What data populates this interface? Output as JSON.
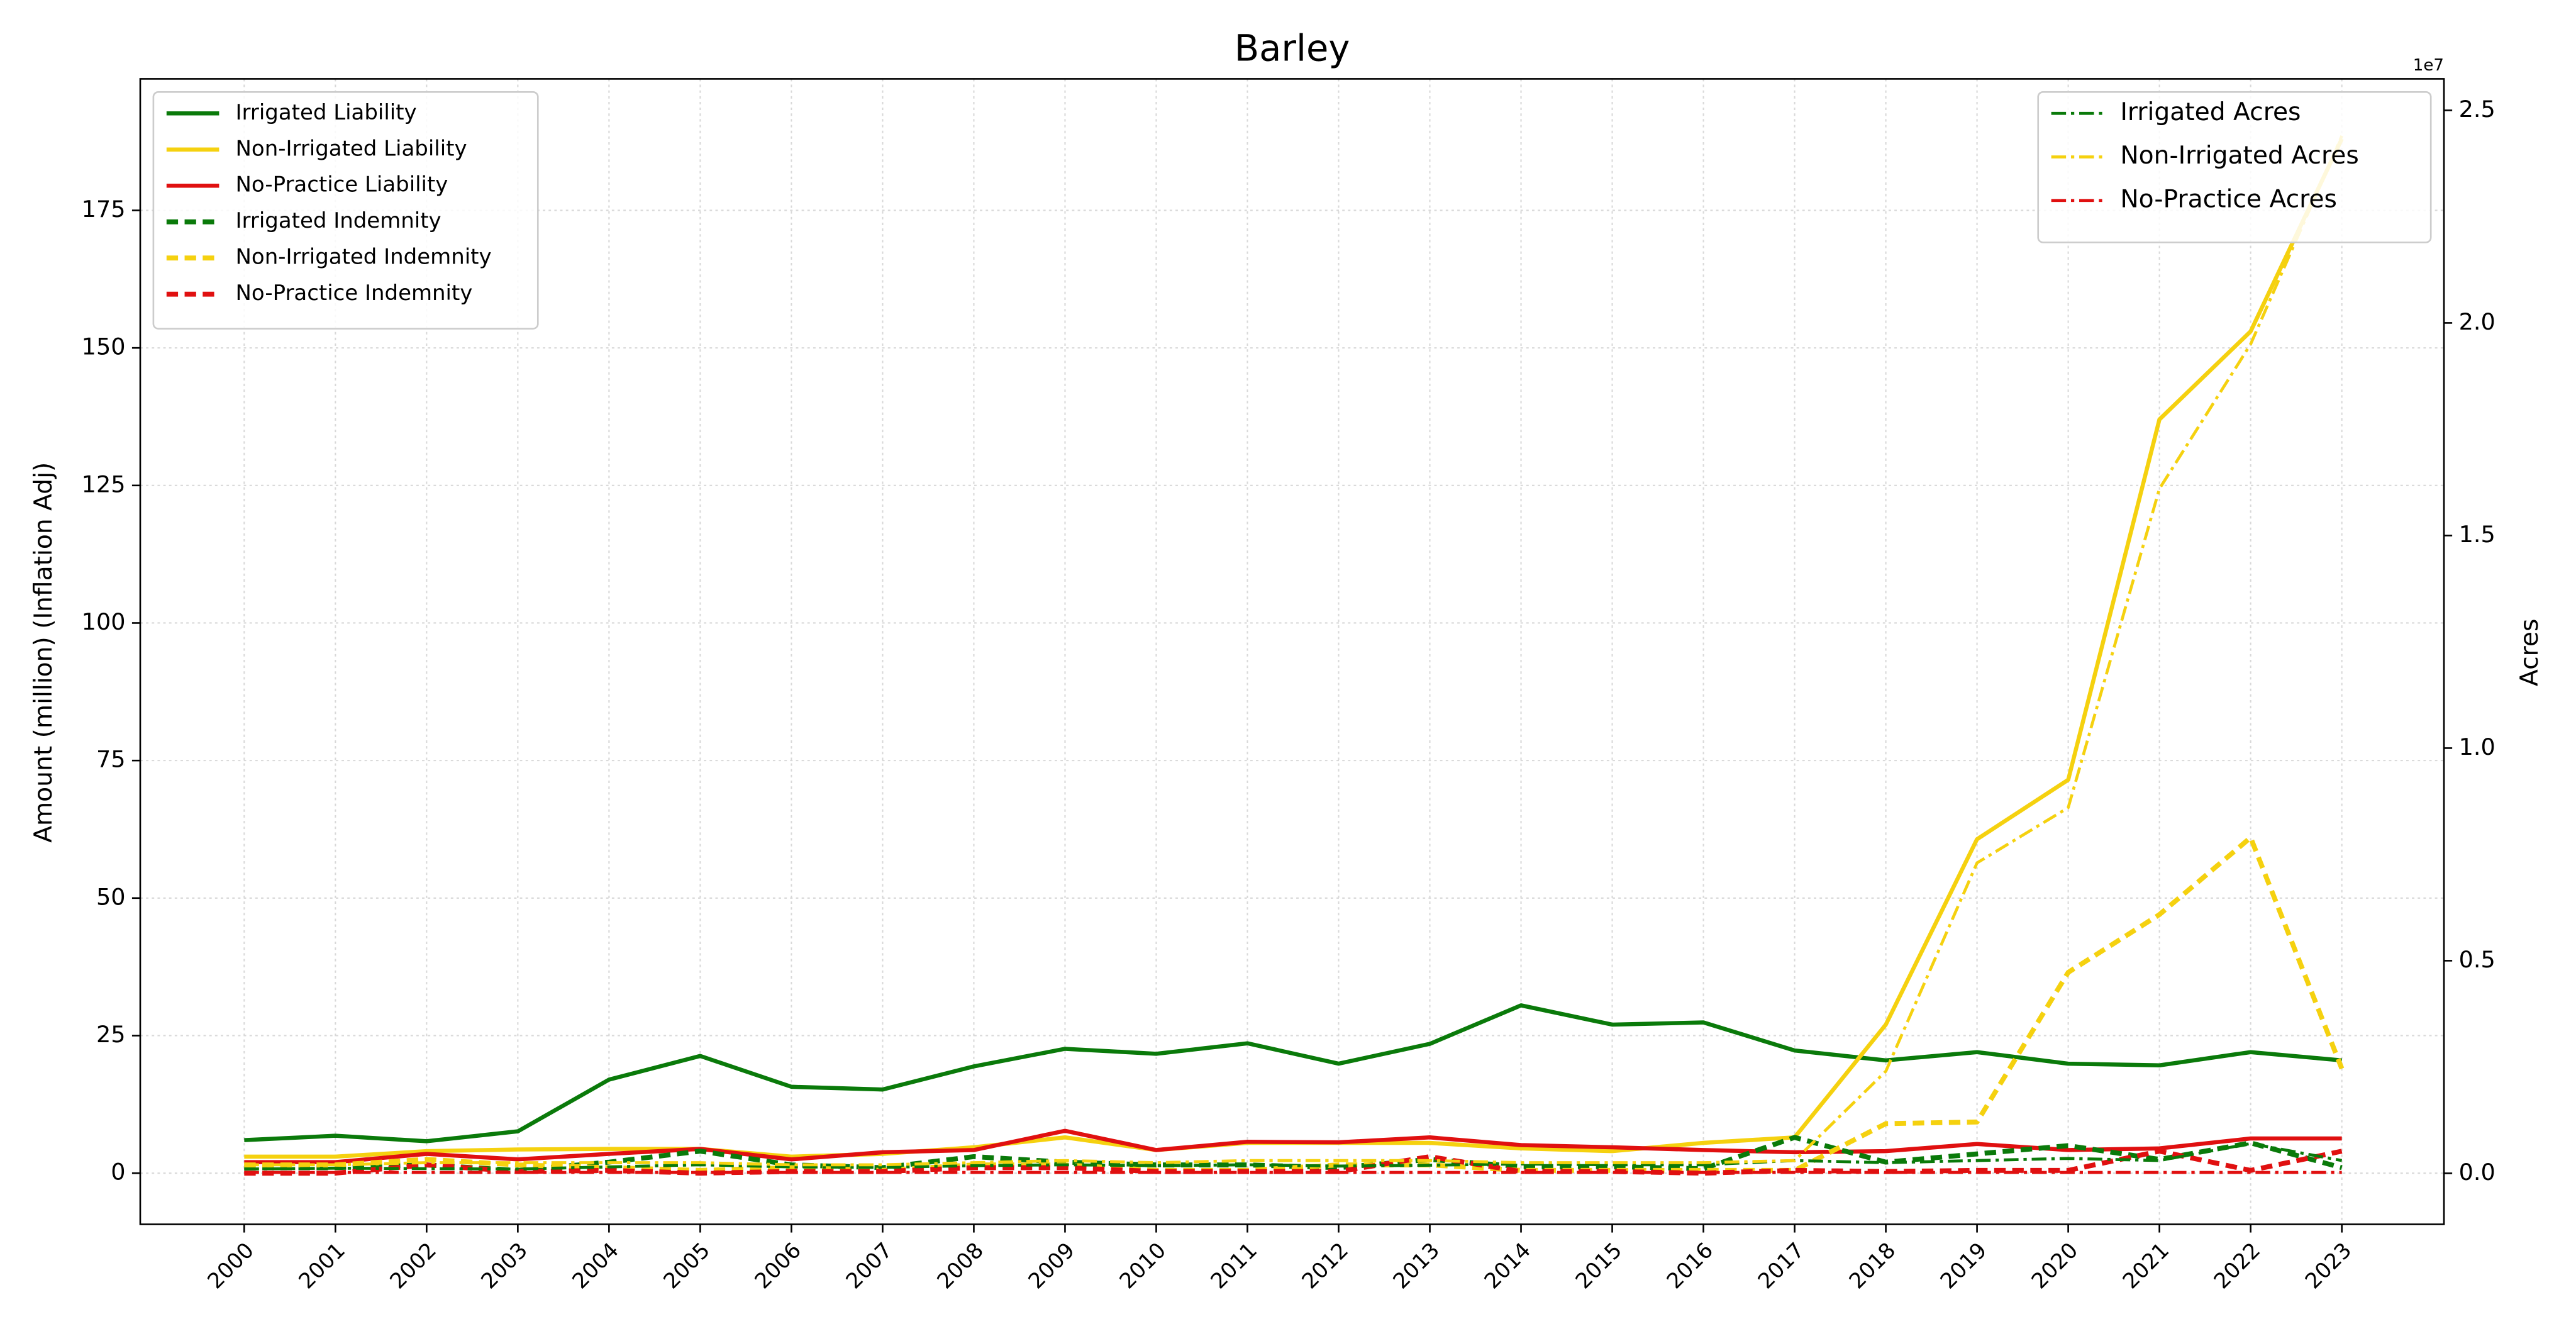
{
  "chart_data": {
    "type": "line",
    "title": "Barley",
    "ylabel": "Amount (million) (Inflation Adj)",
    "y2label": "Acres",
    "y2_offset_label": "1e7",
    "x": [
      2000,
      2001,
      2002,
      2003,
      2004,
      2005,
      2006,
      2007,
      2008,
      2009,
      2010,
      2011,
      2012,
      2013,
      2014,
      2015,
      2016,
      2017,
      2018,
      2019,
      2020,
      2021,
      2022,
      2023
    ],
    "xlim": [
      1998.86,
      2024.12
    ],
    "xticks": [
      2000,
      2001,
      2002,
      2003,
      2004,
      2005,
      2006,
      2007,
      2008,
      2009,
      2010,
      2011,
      2012,
      2013,
      2014,
      2015,
      2016,
      2017,
      2018,
      2019,
      2020,
      2021,
      2022,
      2023
    ],
    "ylim": [
      -9.3,
      198.9
    ],
    "yticks": [
      0,
      25,
      50,
      75,
      100,
      125,
      150,
      175
    ],
    "y2lim": [
      -1200000,
      25740000
    ],
    "y2ticks": [
      {
        "value": 0,
        "label": "0.0"
      },
      {
        "value": 5000000,
        "label": "0.5"
      },
      {
        "value": 10000000,
        "label": "1.0"
      },
      {
        "value": 15000000,
        "label": "1.5"
      },
      {
        "value": 20000000,
        "label": "2.0"
      },
      {
        "value": 25000000,
        "label": "2.5"
      }
    ],
    "grid": true,
    "legend_loc": "upper left",
    "legend2_loc": "upper right",
    "series": [
      {
        "name": "Irrigated Liability",
        "color": "#0a7a0a",
        "linestyle": "solid",
        "axis": "y",
        "values": [
          6,
          6.8,
          5.8,
          7.6,
          17,
          21.3,
          15.7,
          15.2,
          19.4,
          22.6,
          21.7,
          23.6,
          19.9,
          23.5,
          30.5,
          27,
          27.4,
          22.3,
          20.5,
          22,
          19.9,
          19.6,
          22,
          20.5
        ]
      },
      {
        "name": "Non-Irrigated Liability",
        "color": "#f5d10f",
        "linestyle": "solid",
        "axis": "y",
        "values": [
          3,
          3,
          4,
          4.3,
          4.4,
          4.4,
          3,
          3.5,
          4.7,
          6.5,
          4.2,
          5.5,
          5.5,
          5.5,
          4.5,
          4,
          5.5,
          6.5,
          27,
          60.7,
          71.5,
          137,
          153,
          188
        ]
      },
      {
        "name": "No-Practice Liability",
        "color": "#e01010",
        "linestyle": "solid",
        "axis": "y",
        "values": [
          2,
          2,
          3.5,
          2.5,
          3.5,
          4.4,
          2.5,
          3.8,
          4.2,
          7.7,
          4.2,
          5.7,
          5.6,
          6.5,
          5.1,
          4.7,
          4.2,
          3.8,
          4,
          5.3,
          4.2,
          4.5,
          6.3,
          6.3
        ]
      },
      {
        "name": "Irrigated Indemnity",
        "color": "#0a7a0a",
        "linestyle": "dashed",
        "axis": "y",
        "values": [
          1,
          1,
          1.5,
          0.5,
          2,
          4,
          1.5,
          1,
          3,
          2,
          1.5,
          1.5,
          1,
          2.5,
          1.2,
          1.2,
          0.8,
          6.5,
          2,
          3.5,
          5,
          2.5,
          5.5,
          1
        ]
      },
      {
        "name": "Non-Irrigated Indemnity",
        "color": "#f5d10f",
        "linestyle": "dashed",
        "axis": "y",
        "values": [
          1.5,
          1.5,
          2.5,
          1.5,
          1,
          0.5,
          1,
          0.5,
          1.5,
          1.5,
          0.5,
          0.5,
          1.5,
          1.5,
          0.5,
          0.5,
          0.5,
          0.5,
          9,
          9.3,
          36.5,
          47,
          61,
          19
        ]
      },
      {
        "name": "No-Practice Indemnity",
        "color": "#e01010",
        "linestyle": "dashed",
        "axis": "y",
        "values": [
          0,
          0,
          1.5,
          0.3,
          0.5,
          0,
          0.3,
          0.3,
          1,
          1,
          0.3,
          0.3,
          0.3,
          3,
          0.3,
          0.3,
          0,
          0.5,
          0.3,
          0.5,
          0.5,
          4,
          0.5,
          4
        ]
      },
      {
        "name": "Irrigated Acres",
        "color": "#0a7a0a",
        "linestyle": "dashdot",
        "axis": "y2",
        "values": [
          100000,
          120000,
          110000,
          100000,
          150000,
          200000,
          150000,
          140000,
          180000,
          200000,
          180000,
          200000,
          170000,
          190000,
          220000,
          200000,
          200000,
          300000,
          250000,
          300000,
          350000,
          300000,
          700000,
          300000
        ]
      },
      {
        "name": "Non-Irrigated Acres",
        "color": "#f5d10f",
        "linestyle": "dashdot",
        "axis": "y2",
        "values": [
          200000,
          200000,
          250000,
          250000,
          250000,
          250000,
          200000,
          200000,
          250000,
          300000,
          250000,
          300000,
          300000,
          300000,
          250000,
          250000,
          250000,
          300000,
          2400000,
          7300000,
          8600000,
          16100000,
          19500000,
          24400000
        ]
      },
      {
        "name": "No-Practice Acres",
        "color": "#e01010",
        "linestyle": "dashdot",
        "axis": "y2",
        "values": [
          20000,
          20000,
          20000,
          20000,
          20000,
          20000,
          20000,
          20000,
          20000,
          20000,
          20000,
          20000,
          20000,
          20000,
          20000,
          20000,
          20000,
          20000,
          20000,
          20000,
          20000,
          20000,
          20000,
          20000
        ]
      }
    ]
  }
}
